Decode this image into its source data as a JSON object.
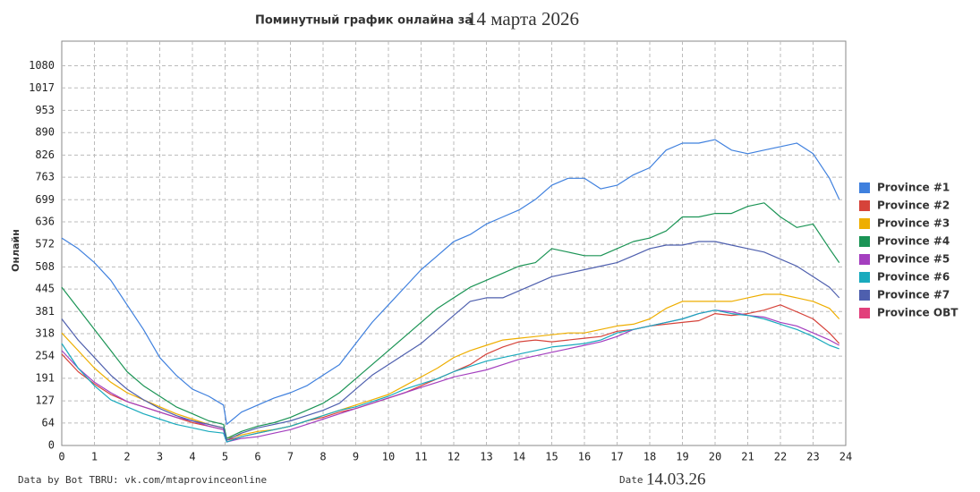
{
  "chart_data": {
    "type": "line",
    "title": "Поминутный график онлайна за",
    "title_date": "14 марта 2026",
    "y_label": "Онлайн",
    "footer": "Data by Bot TBRU: vk.com/mtaprovinceonline",
    "date_label": "Date",
    "date": "14.03.26",
    "grid": true,
    "legend": "right",
    "xlim": [
      0,
      24
    ],
    "xticks": [
      0,
      1,
      2,
      3,
      4,
      5,
      6,
      7,
      8,
      9,
      10,
      11,
      12,
      13,
      14,
      15,
      16,
      17,
      18,
      19,
      20,
      21,
      22,
      23,
      24
    ],
    "ylim": [
      0,
      1150
    ],
    "yticks": [
      0,
      64,
      127,
      191,
      254,
      318,
      381,
      445,
      508,
      572,
      636,
      699,
      763,
      826,
      890,
      953,
      1017,
      1080
    ],
    "x": [
      0,
      0.5,
      1,
      1.5,
      2,
      2.5,
      3,
      3.5,
      4,
      4.5,
      4.95,
      5.05,
      5.5,
      6,
      6.5,
      7,
      7.5,
      8,
      8.5,
      9,
      9.5,
      10,
      10.5,
      11,
      11.5,
      12,
      12.5,
      13,
      13.5,
      14,
      14.5,
      15,
      15.5,
      16,
      16.5,
      17,
      17.5,
      18,
      18.5,
      19,
      19.5,
      20,
      20.5,
      21,
      21.5,
      22,
      22.5,
      23,
      23.5,
      23.8
    ],
    "series": [
      {
        "name": "Province #1",
        "color": "#3f80de",
        "values": [
          590,
          560,
          520,
          470,
          400,
          330,
          250,
          200,
          160,
          140,
          115,
          60,
          95,
          115,
          135,
          150,
          170,
          200,
          230,
          290,
          350,
          400,
          450,
          500,
          540,
          580,
          600,
          630,
          650,
          670,
          700,
          740,
          760,
          760,
          730,
          740,
          770,
          790,
          840,
          860,
          860,
          870,
          840,
          830,
          840,
          850,
          860,
          830,
          760,
          700
        ]
      },
      {
        "name": "Province #2",
        "color": "#d6433a",
        "values": [
          260,
          210,
          175,
          145,
          125,
          110,
          95,
          80,
          65,
          55,
          45,
          15,
          25,
          35,
          45,
          55,
          70,
          80,
          95,
          105,
          120,
          135,
          150,
          170,
          190,
          210,
          230,
          260,
          280,
          295,
          300,
          295,
          300,
          305,
          310,
          325,
          330,
          340,
          345,
          350,
          355,
          375,
          370,
          375,
          385,
          400,
          380,
          360,
          320,
          290
        ]
      },
      {
        "name": "Province #3",
        "color": "#eeae00",
        "values": [
          320,
          270,
          220,
          180,
          150,
          130,
          110,
          90,
          75,
          60,
          50,
          20,
          30,
          40,
          45,
          55,
          70,
          85,
          100,
          115,
          130,
          145,
          170,
          195,
          220,
          250,
          270,
          285,
          300,
          305,
          310,
          315,
          320,
          320,
          330,
          340,
          345,
          360,
          390,
          410,
          410,
          410,
          410,
          420,
          430,
          430,
          420,
          410,
          390,
          360
        ]
      },
      {
        "name": "Province #4",
        "color": "#1b9455",
        "values": [
          450,
          390,
          330,
          270,
          210,
          170,
          140,
          110,
          90,
          70,
          60,
          20,
          40,
          55,
          65,
          80,
          100,
          120,
          150,
          190,
          230,
          270,
          310,
          350,
          390,
          420,
          450,
          470,
          490,
          510,
          520,
          560,
          550,
          540,
          540,
          560,
          580,
          590,
          610,
          650,
          650,
          660,
          660,
          680,
          690,
          650,
          620,
          630,
          560,
          520
        ]
      },
      {
        "name": "Province #5",
        "color": "#a43fbf",
        "values": [
          270,
          220,
          180,
          150,
          125,
          110,
          95,
          80,
          70,
          55,
          45,
          10,
          20,
          25,
          35,
          45,
          60,
          75,
          90,
          105,
          120,
          135,
          150,
          165,
          180,
          195,
          205,
          215,
          230,
          245,
          255,
          265,
          275,
          285,
          295,
          310,
          330,
          340,
          350,
          360,
          375,
          385,
          380,
          370,
          365,
          350,
          340,
          320,
          300,
          285
        ]
      },
      {
        "name": "Province #6",
        "color": "#19aabd",
        "values": [
          290,
          220,
          170,
          130,
          110,
          90,
          75,
          60,
          50,
          40,
          35,
          10,
          25,
          35,
          45,
          55,
          70,
          85,
          100,
          110,
          125,
          140,
          160,
          175,
          190,
          210,
          225,
          240,
          250,
          260,
          270,
          280,
          285,
          290,
          300,
          320,
          330,
          340,
          350,
          360,
          375,
          385,
          375,
          370,
          360,
          345,
          330,
          310,
          285,
          275
        ]
      },
      {
        "name": "Province #7",
        "color": "#4e5fae",
        "values": [
          360,
          300,
          250,
          200,
          160,
          130,
          105,
          85,
          70,
          60,
          50,
          15,
          35,
          50,
          60,
          70,
          85,
          100,
          120,
          160,
          200,
          230,
          260,
          290,
          330,
          370,
          410,
          420,
          420,
          440,
          460,
          480,
          490,
          500,
          510,
          520,
          540,
          560,
          570,
          570,
          580,
          580,
          570,
          560,
          550,
          530,
          510,
          480,
          450,
          420
        ]
      },
      {
        "name": "Province OBT",
        "color": "#e2407b",
        "values": [
          null,
          null,
          null,
          null,
          null,
          null,
          null,
          null,
          null,
          null,
          null,
          null,
          null,
          null,
          null,
          null,
          null,
          null,
          null,
          null,
          null,
          null,
          null,
          null,
          null,
          null,
          null,
          null,
          null,
          null,
          null,
          null,
          null,
          null,
          null,
          null,
          null,
          null,
          null,
          null,
          null,
          null,
          null,
          null,
          null,
          null,
          null,
          null,
          null,
          null
        ]
      }
    ]
  }
}
